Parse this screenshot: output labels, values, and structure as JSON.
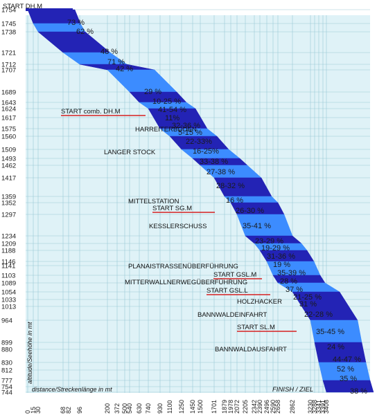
{
  "chart_data": {
    "type": "area",
    "y_ticks": [
      1754,
      1745,
      1738,
      1721,
      1712,
      1707,
      1689,
      1643,
      1624,
      1617,
      1575,
      1560,
      1509,
      1493,
      1462,
      1417,
      1359,
      1352,
      1297,
      1234,
      1209,
      1188,
      1146,
      1141,
      1103,
      1089,
      1054,
      1033,
      1013,
      964,
      899,
      880,
      830,
      812,
      777,
      754,
      744
    ],
    "x_ticks": [
      0,
      15,
      30,
      68,
      82,
      96,
      200,
      372,
      500,
      540,
      630,
      740,
      930,
      1100,
      1250,
      1450,
      1500,
      1701,
      1879,
      1978,
      2072,
      2205,
      2342,
      2390,
      2496,
      2590,
      2658,
      2862,
      3230,
      3288,
      3341,
      3391,
      3408
    ],
    "profile_points": [
      [
        0,
        1754
      ],
      [
        15,
        1745
      ],
      [
        30,
        1738
      ],
      [
        68,
        1721
      ],
      [
        96,
        1712
      ],
      [
        200,
        1707
      ],
      [
        540,
        1689
      ],
      [
        630,
        1643
      ],
      [
        740,
        1624
      ],
      [
        930,
        1575
      ],
      [
        1100,
        1560
      ],
      [
        1250,
        1509
      ],
      [
        1450,
        1493
      ],
      [
        1500,
        1462
      ],
      [
        1701,
        1417
      ],
      [
        1879,
        1359
      ],
      [
        1978,
        1352
      ],
      [
        2072,
        1297
      ],
      [
        2205,
        1234
      ],
      [
        2342,
        1209
      ],
      [
        2390,
        1188
      ],
      [
        2496,
        1146
      ],
      [
        2590,
        1103
      ],
      [
        2658,
        1089
      ],
      [
        2862,
        1054
      ],
      [
        3230,
        964
      ],
      [
        3288,
        899
      ],
      [
        3341,
        830
      ],
      [
        3391,
        777
      ],
      [
        3408,
        744
      ]
    ],
    "grades": [
      "73 %",
      "62 %",
      "48 %",
      "71 %",
      "42 %",
      "29 %",
      "10-25 %",
      "41-54 %",
      "11%",
      "32-36 %",
      "5-15 %",
      "22-33%",
      "16-25%",
      "33-38 %",
      "27-38 %",
      "28-32 %",
      "16 %",
      "26-30 %",
      "35-41 %",
      "23-29 %",
      "19-29 %",
      "31-36 %",
      "19 %",
      "35-39 %",
      "28 %",
      "37 %",
      "21-25 %",
      "31 %",
      "22-28 %",
      "35-45 %",
      "24 %",
      "44-47 %",
      "52 %",
      "35 %",
      "38 %"
    ],
    "place_labels": [
      "HARREITERBODEN",
      "LANGER STOCK",
      "MITTELSTATION",
      "KESSLERSCHUSS",
      "PLANAISTRASSENÜBERFÜHRUNG",
      "MITTERWALLNERWEGÜBERFÜHRUNG",
      "HOLZHACKER",
      "BANNWALDEINFAHRT",
      "BANNWALDAUSFAHRT"
    ],
    "start_labels": [
      "START DH.M",
      "START comb. DH.M",
      "START SG.M",
      "START GSL.M",
      "START GSL.L",
      "START SL.M"
    ],
    "finish_label": "FINISH / ZIEL",
    "ylabel": "altitude/Seehöhe in mt",
    "xlabel": "distance/Streckenlänge in mt",
    "colors": {
      "dark": "#2323b5",
      "light": "#3c8cff",
      "grid": "#9ac8d6",
      "plot_bg": "#dff2f7",
      "redline": "#d62020"
    }
  }
}
